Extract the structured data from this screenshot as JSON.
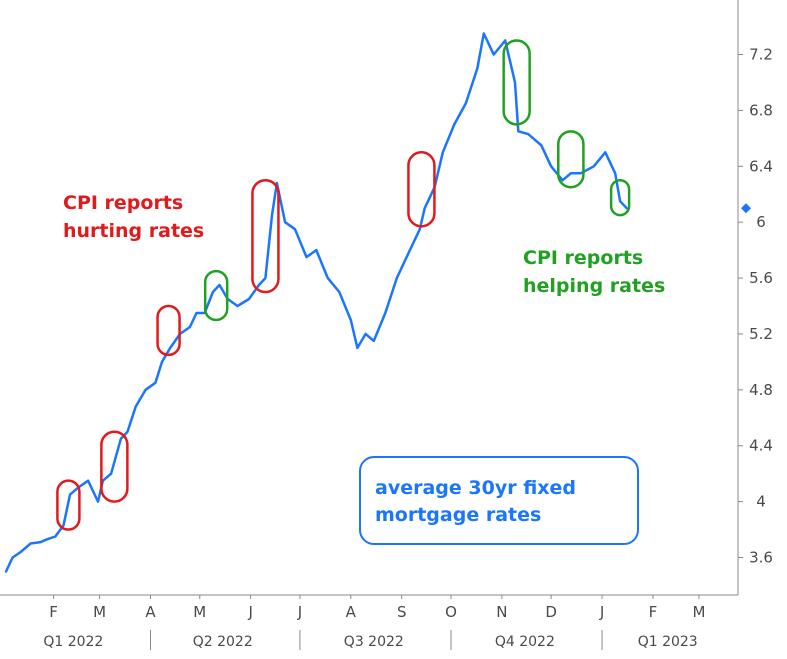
{
  "chart_data": {
    "type": "line",
    "title": "",
    "xlabel": "",
    "ylabel": "",
    "ylim": [
      3.35,
      7.45
    ],
    "y_ticks": [
      3.6,
      4,
      4.4,
      4.8,
      5.2,
      5.6,
      6,
      6.4,
      6.8,
      7.2
    ],
    "y_tick_labels": [
      "3.6",
      "4",
      "4.4",
      "4.8",
      "5.2",
      "5.6",
      "6",
      "6.4",
      "6.8",
      "7.2"
    ],
    "x_month_labels": [
      "F",
      "M",
      "A",
      "M",
      "J",
      "J",
      "A",
      "S",
      "O",
      "N",
      "D",
      "J",
      "F",
      "M"
    ],
    "x_quarter_labels": [
      "Q1 2022",
      "Q2 2022",
      "Q3 2022",
      "Q4 2022",
      "Q1 2023"
    ],
    "grid": false,
    "line_color": "#1a75ff",
    "series": [
      {
        "name": "",
        "x": [
          "2022-01-03",
          "2022-01-07",
          "2022-01-12",
          "2022-01-18",
          "2022-01-24",
          "2022-01-28",
          "2022-02-02",
          "2022-02-07",
          "2022-02-11",
          "2022-02-16",
          "2022-02-22",
          "2022-02-28",
          "2022-03-03",
          "2022-03-08",
          "2022-03-14",
          "2022-03-18",
          "2022-03-23",
          "2022-03-29",
          "2022-04-04",
          "2022-04-08",
          "2022-04-13",
          "2022-04-19",
          "2022-04-25",
          "2022-04-29",
          "2022-05-04",
          "2022-05-09",
          "2022-05-13",
          "2022-05-18",
          "2022-05-24",
          "2022-05-31",
          "2022-06-06",
          "2022-06-10",
          "2022-06-14",
          "2022-06-17",
          "2022-06-22",
          "2022-06-28",
          "2022-07-05",
          "2022-07-11",
          "2022-07-18",
          "2022-07-25",
          "2022-08-01",
          "2022-08-05",
          "2022-08-10",
          "2022-08-15",
          "2022-08-22",
          "2022-08-29",
          "2022-09-06",
          "2022-09-12",
          "2022-09-15",
          "2022-09-21",
          "2022-09-26",
          "2022-10-03",
          "2022-10-10",
          "2022-10-17",
          "2022-10-21",
          "2022-10-27",
          "2022-11-03",
          "2022-11-09",
          "2022-11-11",
          "2022-11-17",
          "2022-11-25",
          "2022-12-01",
          "2022-12-08",
          "2022-12-13",
          "2022-12-19",
          "2022-12-27",
          "2023-01-03",
          "2023-01-09",
          "2023-01-12",
          "2023-01-16"
        ],
        "values": [
          3.5,
          3.6,
          3.64,
          3.7,
          3.71,
          3.73,
          3.75,
          3.83,
          4.05,
          4.1,
          4.15,
          4.0,
          4.15,
          4.2,
          4.45,
          4.5,
          4.68,
          4.8,
          4.85,
          5.0,
          5.1,
          5.2,
          5.25,
          5.35,
          5.35,
          5.5,
          5.55,
          5.45,
          5.4,
          5.45,
          5.55,
          5.6,
          6.05,
          6.28,
          6.0,
          5.95,
          5.75,
          5.8,
          5.6,
          5.5,
          5.3,
          5.1,
          5.2,
          5.15,
          5.35,
          5.6,
          5.8,
          5.95,
          6.1,
          6.25,
          6.5,
          6.7,
          6.85,
          7.1,
          7.35,
          7.2,
          7.3,
          7.0,
          6.65,
          6.63,
          6.55,
          6.4,
          6.3,
          6.35,
          6.35,
          6.4,
          6.5,
          6.35,
          6.15,
          6.1
        ]
      }
    ],
    "latest_marker_value": 6.1,
    "annotations": {
      "hurting": {
        "line1": "CPI reports",
        "line2": "hurting rates",
        "color": "#e31a1c"
      },
      "helping": {
        "line1": "CPI reports",
        "line2": "helping rates",
        "color": "#21a121"
      },
      "legend_box": {
        "line1": "average 30yr fixed",
        "line2": "mortgage rates",
        "color": "#1a75ff"
      }
    },
    "cpi_markers": [
      {
        "effect": "hurting",
        "date": "2022-02-10",
        "low": 3.8,
        "high": 4.15
      },
      {
        "effect": "hurting",
        "date": "2022-03-10",
        "low": 4.0,
        "high": 4.5
      },
      {
        "effect": "hurting",
        "date": "2022-04-12",
        "low": 5.05,
        "high": 5.4
      },
      {
        "effect": "helping",
        "date": "2022-05-11",
        "low": 5.3,
        "high": 5.65
      },
      {
        "effect": "hurting",
        "date": "2022-06-10",
        "low": 5.5,
        "high": 6.3
      },
      {
        "effect": "hurting",
        "date": "2022-09-13",
        "low": 5.97,
        "high": 6.5
      },
      {
        "effect": "helping",
        "date": "2022-11-10",
        "low": 6.7,
        "high": 7.3
      },
      {
        "effect": "helping",
        "date": "2022-12-13",
        "low": 6.25,
        "high": 6.65
      },
      {
        "effect": "helping",
        "date": "2023-01-12",
        "low": 6.05,
        "high": 6.3
      }
    ]
  }
}
